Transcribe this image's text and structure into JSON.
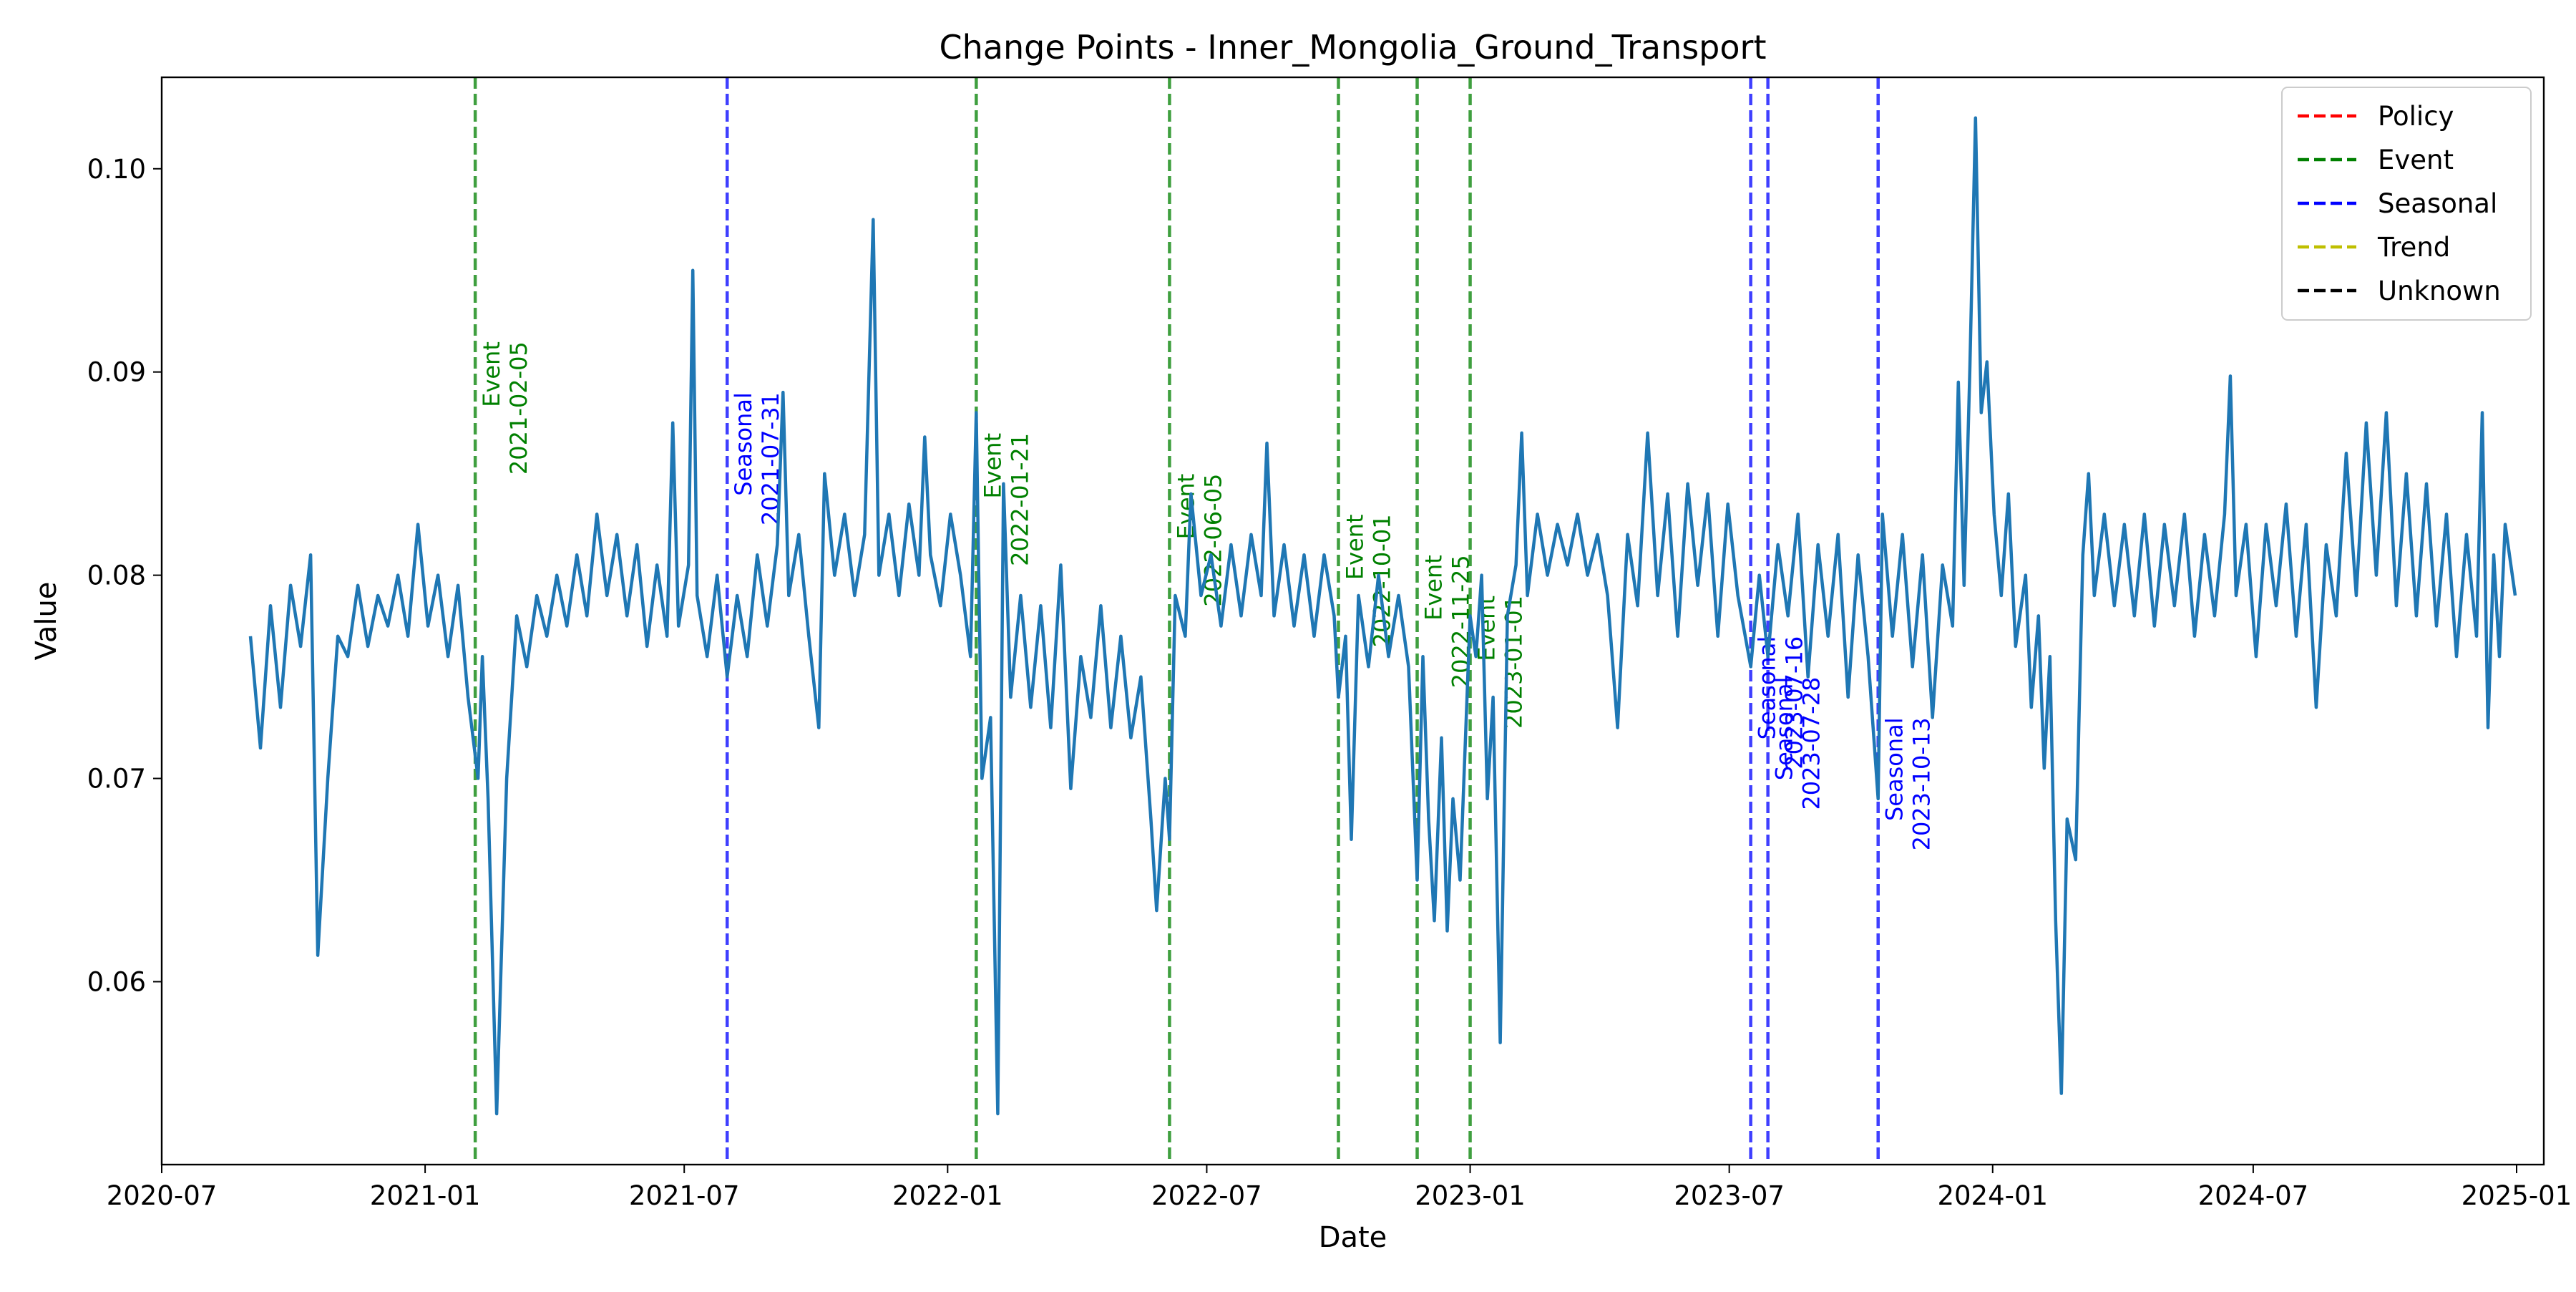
{
  "chart_data": {
    "type": "line",
    "title": "Change Points - Inner_Mongolia_Ground_Transport",
    "xlabel": "Date",
    "ylabel": "Value",
    "x_range": [
      "2020-07-01",
      "2025-01-20"
    ],
    "ylim": [
      0.051,
      0.1045
    ],
    "x_ticks": [
      "2020-07",
      "2021-01",
      "2021-07",
      "2022-01",
      "2022-07",
      "2023-01",
      "2023-07",
      "2024-01",
      "2024-07",
      "2025-01"
    ],
    "y_ticks": [
      "0.06",
      "0.07",
      "0.08",
      "0.09",
      "0.10"
    ],
    "grid": false,
    "legend_position": "top-right",
    "legend": [
      {
        "label": "Policy",
        "color": "#ff0000"
      },
      {
        "label": "Event",
        "color": "#008000"
      },
      {
        "label": "Seasonal",
        "color": "#0000ff"
      },
      {
        "label": "Trend",
        "color": "#bfbf00"
      },
      {
        "label": "Unknown",
        "color": "#000000"
      }
    ],
    "series": [
      {
        "color": "#1f77b4",
        "start_date": "2020-09-01",
        "end_date": "2024-12-31",
        "points": [
          [
            "2020-09-01",
            0.077
          ],
          [
            "2020-09-08",
            0.0715
          ],
          [
            "2020-09-15",
            0.0785
          ],
          [
            "2020-09-22",
            0.0735
          ],
          [
            "2020-09-29",
            0.0795
          ],
          [
            "2020-10-06",
            0.0765
          ],
          [
            "2020-10-13",
            0.081
          ],
          [
            "2020-10-18",
            0.0613
          ],
          [
            "2020-10-25",
            0.07
          ],
          [
            "2020-11-01",
            0.077
          ],
          [
            "2020-11-08",
            0.076
          ],
          [
            "2020-11-15",
            0.0795
          ],
          [
            "2020-11-22",
            0.0765
          ],
          [
            "2020-11-29",
            0.079
          ],
          [
            "2020-12-06",
            0.0775
          ],
          [
            "2020-12-13",
            0.08
          ],
          [
            "2020-12-20",
            0.077
          ],
          [
            "2020-12-27",
            0.0825
          ],
          [
            "2021-01-03",
            0.0775
          ],
          [
            "2021-01-10",
            0.08
          ],
          [
            "2021-01-17",
            0.076
          ],
          [
            "2021-01-24",
            0.0795
          ],
          [
            "2021-01-31",
            0.074
          ],
          [
            "2021-02-07",
            0.07
          ],
          [
            "2021-02-10",
            0.076
          ],
          [
            "2021-02-14",
            0.069
          ],
          [
            "2021-02-20",
            0.0535
          ],
          [
            "2021-02-27",
            0.07
          ],
          [
            "2021-03-06",
            0.078
          ],
          [
            "2021-03-13",
            0.0755
          ],
          [
            "2021-03-20",
            0.079
          ],
          [
            "2021-03-27",
            0.077
          ],
          [
            "2021-04-03",
            0.08
          ],
          [
            "2021-04-10",
            0.0775
          ],
          [
            "2021-04-17",
            0.081
          ],
          [
            "2021-04-24",
            0.078
          ],
          [
            "2021-05-01",
            0.083
          ],
          [
            "2021-05-08",
            0.079
          ],
          [
            "2021-05-15",
            0.082
          ],
          [
            "2021-05-22",
            0.078
          ],
          [
            "2021-05-29",
            0.0815
          ],
          [
            "2021-06-05",
            0.0765
          ],
          [
            "2021-06-12",
            0.0805
          ],
          [
            "2021-06-19",
            0.077
          ],
          [
            "2021-06-23",
            0.0875
          ],
          [
            "2021-06-27",
            0.0775
          ],
          [
            "2021-07-04",
            0.0805
          ],
          [
            "2021-07-07",
            0.095
          ],
          [
            "2021-07-10",
            0.079
          ],
          [
            "2021-07-17",
            0.076
          ],
          [
            "2021-07-24",
            0.08
          ],
          [
            "2021-07-31",
            0.075
          ],
          [
            "2021-08-07",
            0.079
          ],
          [
            "2021-08-14",
            0.076
          ],
          [
            "2021-08-21",
            0.081
          ],
          [
            "2021-08-28",
            0.0775
          ],
          [
            "2021-09-04",
            0.0815
          ],
          [
            "2021-09-08",
            0.089
          ],
          [
            "2021-09-12",
            0.079
          ],
          [
            "2021-09-19",
            0.082
          ],
          [
            "2021-09-26",
            0.077
          ],
          [
            "2021-10-03",
            0.0725
          ],
          [
            "2021-10-07",
            0.085
          ],
          [
            "2021-10-14",
            0.08
          ],
          [
            "2021-10-21",
            0.083
          ],
          [
            "2021-10-28",
            0.079
          ],
          [
            "2021-11-04",
            0.082
          ],
          [
            "2021-11-10",
            0.0975
          ],
          [
            "2021-11-14",
            0.08
          ],
          [
            "2021-11-21",
            0.083
          ],
          [
            "2021-11-28",
            0.079
          ],
          [
            "2021-12-05",
            0.0835
          ],
          [
            "2021-12-12",
            0.08
          ],
          [
            "2021-12-16",
            0.0868
          ],
          [
            "2021-12-20",
            0.081
          ],
          [
            "2021-12-27",
            0.0785
          ],
          [
            "2022-01-03",
            0.083
          ],
          [
            "2022-01-10",
            0.08
          ],
          [
            "2022-01-17",
            0.076
          ],
          [
            "2022-01-21",
            0.088
          ],
          [
            "2022-01-25",
            0.07
          ],
          [
            "2022-01-31",
            0.073
          ],
          [
            "2022-02-05",
            0.0535
          ],
          [
            "2022-02-09",
            0.0845
          ],
          [
            "2022-02-14",
            0.074
          ],
          [
            "2022-02-21",
            0.079
          ],
          [
            "2022-02-28",
            0.0735
          ],
          [
            "2022-03-07",
            0.0785
          ],
          [
            "2022-03-14",
            0.0725
          ],
          [
            "2022-03-21",
            0.0805
          ],
          [
            "2022-03-28",
            0.0695
          ],
          [
            "2022-04-04",
            0.076
          ],
          [
            "2022-04-11",
            0.073
          ],
          [
            "2022-04-18",
            0.0785
          ],
          [
            "2022-04-25",
            0.0725
          ],
          [
            "2022-05-02",
            0.077
          ],
          [
            "2022-05-09",
            0.072
          ],
          [
            "2022-05-16",
            0.075
          ],
          [
            "2022-05-23",
            0.068
          ],
          [
            "2022-05-27",
            0.0635
          ],
          [
            "2022-06-02",
            0.07
          ],
          [
            "2022-06-05",
            0.067
          ],
          [
            "2022-06-09",
            0.079
          ],
          [
            "2022-06-16",
            0.077
          ],
          [
            "2022-06-20",
            0.084
          ],
          [
            "2022-06-27",
            0.079
          ],
          [
            "2022-07-04",
            0.081
          ],
          [
            "2022-07-11",
            0.0775
          ],
          [
            "2022-07-18",
            0.0815
          ],
          [
            "2022-07-25",
            0.078
          ],
          [
            "2022-08-01",
            0.082
          ],
          [
            "2022-08-08",
            0.079
          ],
          [
            "2022-08-12",
            0.0865
          ],
          [
            "2022-08-17",
            0.078
          ],
          [
            "2022-08-24",
            0.0815
          ],
          [
            "2022-08-31",
            0.0775
          ],
          [
            "2022-09-07",
            0.081
          ],
          [
            "2022-09-14",
            0.077
          ],
          [
            "2022-09-21",
            0.081
          ],
          [
            "2022-09-28",
            0.078
          ],
          [
            "2022-10-01",
            0.074
          ],
          [
            "2022-10-06",
            0.077
          ],
          [
            "2022-10-10",
            0.067
          ],
          [
            "2022-10-15",
            0.079
          ],
          [
            "2022-10-22",
            0.0755
          ],
          [
            "2022-10-29",
            0.08
          ],
          [
            "2022-11-05",
            0.076
          ],
          [
            "2022-11-12",
            0.079
          ],
          [
            "2022-11-19",
            0.0755
          ],
          [
            "2022-11-25",
            0.065
          ],
          [
            "2022-11-29",
            0.076
          ],
          [
            "2022-12-03",
            0.068
          ],
          [
            "2022-12-07",
            0.063
          ],
          [
            "2022-12-12",
            0.072
          ],
          [
            "2022-12-16",
            0.0625
          ],
          [
            "2022-12-20",
            0.069
          ],
          [
            "2022-12-25",
            0.065
          ],
          [
            "2023-01-01",
            0.078
          ],
          [
            "2023-01-05",
            0.076
          ],
          [
            "2023-01-09",
            0.08
          ],
          [
            "2023-01-13",
            0.069
          ],
          [
            "2023-01-17",
            0.074
          ],
          [
            "2023-01-22",
            0.057
          ],
          [
            "2023-01-27",
            0.078
          ],
          [
            "2023-02-02",
            0.0805
          ],
          [
            "2023-02-06",
            0.087
          ],
          [
            "2023-02-10",
            0.079
          ],
          [
            "2023-02-17",
            0.083
          ],
          [
            "2023-02-24",
            0.08
          ],
          [
            "2023-03-03",
            0.0825
          ],
          [
            "2023-03-10",
            0.0805
          ],
          [
            "2023-03-17",
            0.083
          ],
          [
            "2023-03-24",
            0.08
          ],
          [
            "2023-03-31",
            0.082
          ],
          [
            "2023-04-07",
            0.079
          ],
          [
            "2023-04-14",
            0.0725
          ],
          [
            "2023-04-21",
            0.082
          ],
          [
            "2023-04-28",
            0.0785
          ],
          [
            "2023-05-05",
            0.087
          ],
          [
            "2023-05-12",
            0.079
          ],
          [
            "2023-05-19",
            0.084
          ],
          [
            "2023-05-26",
            0.077
          ],
          [
            "2023-06-02",
            0.0845
          ],
          [
            "2023-06-09",
            0.0795
          ],
          [
            "2023-06-16",
            0.084
          ],
          [
            "2023-06-23",
            0.077
          ],
          [
            "2023-06-30",
            0.0835
          ],
          [
            "2023-07-07",
            0.079
          ],
          [
            "2023-07-16",
            0.0755
          ],
          [
            "2023-07-22",
            0.08
          ],
          [
            "2023-07-28",
            0.076
          ],
          [
            "2023-08-04",
            0.0815
          ],
          [
            "2023-08-11",
            0.078
          ],
          [
            "2023-08-18",
            0.083
          ],
          [
            "2023-08-25",
            0.075
          ],
          [
            "2023-09-01",
            0.0815
          ],
          [
            "2023-09-08",
            0.077
          ],
          [
            "2023-09-15",
            0.082
          ],
          [
            "2023-09-22",
            0.074
          ],
          [
            "2023-09-29",
            0.081
          ],
          [
            "2023-10-06",
            0.076
          ],
          [
            "2023-10-13",
            0.069
          ],
          [
            "2023-10-16",
            0.083
          ],
          [
            "2023-10-23",
            0.077
          ],
          [
            "2023-10-30",
            0.082
          ],
          [
            "2023-11-06",
            0.0755
          ],
          [
            "2023-11-13",
            0.081
          ],
          [
            "2023-11-20",
            0.073
          ],
          [
            "2023-11-27",
            0.0805
          ],
          [
            "2023-12-04",
            0.0775
          ],
          [
            "2023-12-08",
            0.0895
          ],
          [
            "2023-12-12",
            0.0795
          ],
          [
            "2023-12-16",
            0.09
          ],
          [
            "2023-12-20",
            0.1025
          ],
          [
            "2023-12-24",
            0.088
          ],
          [
            "2023-12-28",
            0.0905
          ],
          [
            "2024-01-02",
            0.083
          ],
          [
            "2024-01-07",
            0.079
          ],
          [
            "2024-01-12",
            0.084
          ],
          [
            "2024-01-17",
            0.0765
          ],
          [
            "2024-01-24",
            0.08
          ],
          [
            "2024-01-28",
            0.0735
          ],
          [
            "2024-02-02",
            0.078
          ],
          [
            "2024-02-06",
            0.0705
          ],
          [
            "2024-02-10",
            0.076
          ],
          [
            "2024-02-14",
            0.063
          ],
          [
            "2024-02-18",
            0.0545
          ],
          [
            "2024-02-22",
            0.068
          ],
          [
            "2024-02-28",
            0.066
          ],
          [
            "2024-03-04",
            0.081
          ],
          [
            "2024-03-08",
            0.085
          ],
          [
            "2024-03-12",
            0.079
          ],
          [
            "2024-03-19",
            0.083
          ],
          [
            "2024-03-26",
            0.0785
          ],
          [
            "2024-04-02",
            0.0825
          ],
          [
            "2024-04-09",
            0.078
          ],
          [
            "2024-04-16",
            0.083
          ],
          [
            "2024-04-23",
            0.0775
          ],
          [
            "2024-04-30",
            0.0825
          ],
          [
            "2024-05-07",
            0.0785
          ],
          [
            "2024-05-14",
            0.083
          ],
          [
            "2024-05-21",
            0.077
          ],
          [
            "2024-05-28",
            0.082
          ],
          [
            "2024-06-04",
            0.078
          ],
          [
            "2024-06-11",
            0.083
          ],
          [
            "2024-06-15",
            0.0898
          ],
          [
            "2024-06-19",
            0.079
          ],
          [
            "2024-06-26",
            0.0825
          ],
          [
            "2024-07-03",
            0.076
          ],
          [
            "2024-07-10",
            0.0825
          ],
          [
            "2024-07-17",
            0.0785
          ],
          [
            "2024-07-24",
            0.0835
          ],
          [
            "2024-07-31",
            0.077
          ],
          [
            "2024-08-07",
            0.0825
          ],
          [
            "2024-08-14",
            0.0735
          ],
          [
            "2024-08-21",
            0.0815
          ],
          [
            "2024-08-28",
            0.078
          ],
          [
            "2024-09-04",
            0.086
          ],
          [
            "2024-09-11",
            0.079
          ],
          [
            "2024-09-18",
            0.0875
          ],
          [
            "2024-09-25",
            0.08
          ],
          [
            "2024-10-02",
            0.088
          ],
          [
            "2024-10-09",
            0.0785
          ],
          [
            "2024-10-16",
            0.085
          ],
          [
            "2024-10-23",
            0.078
          ],
          [
            "2024-10-30",
            0.0845
          ],
          [
            "2024-11-06",
            0.0775
          ],
          [
            "2024-11-13",
            0.083
          ],
          [
            "2024-11-20",
            0.076
          ],
          [
            "2024-11-27",
            0.082
          ],
          [
            "2024-12-04",
            0.077
          ],
          [
            "2024-12-08",
            0.088
          ],
          [
            "2024-12-12",
            0.0725
          ],
          [
            "2024-12-16",
            0.081
          ],
          [
            "2024-12-20",
            0.076
          ],
          [
            "2024-12-24",
            0.0825
          ],
          [
            "2024-12-31",
            0.079
          ]
        ]
      }
    ],
    "change_points": [
      {
        "date": "2021-02-05",
        "type": "Event",
        "label_top": 0.0915
      },
      {
        "date": "2021-07-31",
        "type": "Seasonal",
        "label_top": 0.089
      },
      {
        "date": "2022-01-21",
        "type": "Event",
        "label_top": 0.087
      },
      {
        "date": "2022-06-05",
        "type": "Event",
        "label_top": 0.085
      },
      {
        "date": "2022-10-01",
        "type": "Event",
        "label_top": 0.083
      },
      {
        "date": "2022-11-25",
        "type": "Event",
        "label_top": 0.081
      },
      {
        "date": "2023-01-01",
        "type": "Event",
        "label_top": 0.079
      },
      {
        "date": "2023-07-16",
        "type": "Seasonal",
        "label_top": 0.077
      },
      {
        "date": "2023-07-28",
        "type": "Seasonal",
        "label_top": 0.075
      },
      {
        "date": "2023-10-13",
        "type": "Seasonal",
        "label_top": 0.073
      }
    ]
  }
}
